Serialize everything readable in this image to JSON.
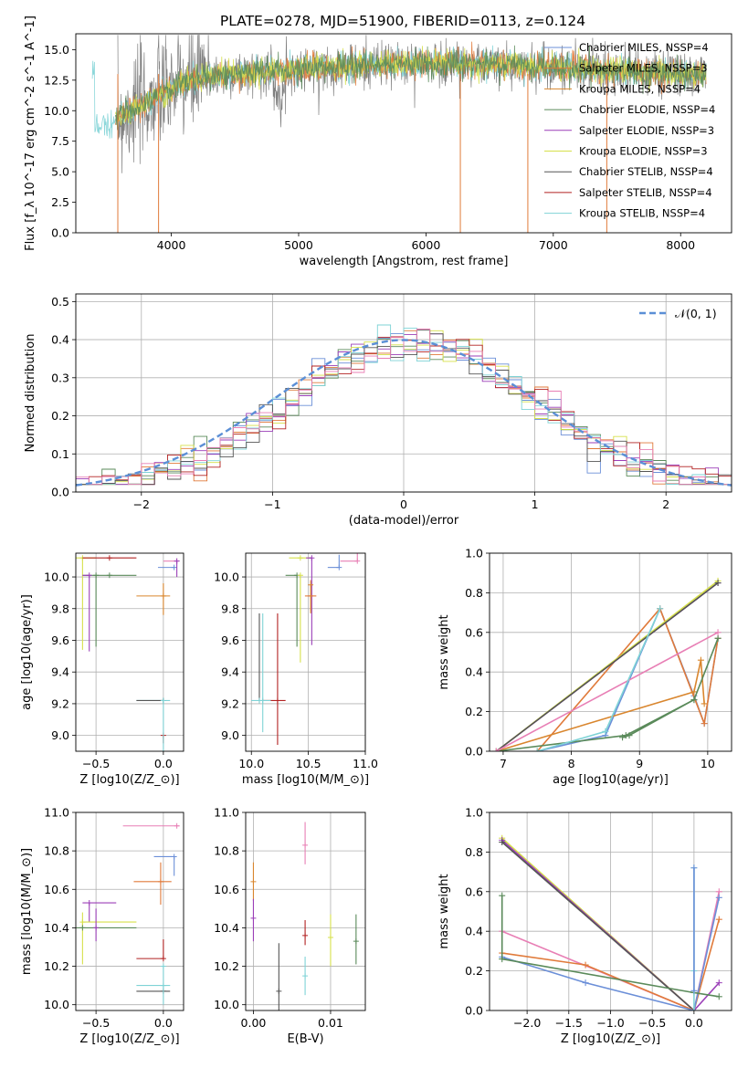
{
  "figure_title": "PLATE=0278, MJD=51900, FIBERID=0113, z=0.124",
  "palette": {
    "Chabrier MILES": "#6b8fd8",
    "Salpeter MILES": "#e07a3a",
    "Kroupa MILES": "#d9862e",
    "Chabrier ELODIE": "#5a8a5a",
    "Salpeter ELODIE": "#9b3fb8",
    "Kroupa ELODIE": "#d6e04a",
    "Chabrier STELIB": "#555555",
    "Salpeter STELIB": "#b22222",
    "Kroupa STELIB": "#7fd3d6",
    "grey_spectrum": "#808080",
    "pink": "#e87fb5",
    "gauss": "#5b8fd6"
  },
  "chart_data": [
    {
      "id": "spectrum",
      "type": "line",
      "title": "PLATE=0278, MJD=51900, FIBERID=0113, z=0.124",
      "xlabel": "wavelength [Angstrom, rest frame]",
      "ylabel": "Flux [f_λ 10^-17 erg cm^-2 s^-1 A^-1]",
      "xlim": [
        3250,
        8400
      ],
      "ylim": [
        0,
        16.3
      ],
      "xticks": [
        4000,
        5000,
        6000,
        7000,
        8000
      ],
      "yticks": [
        0.0,
        2.5,
        5.0,
        7.5,
        10.0,
        12.5,
        15.0
      ],
      "legend_position": "right",
      "legend": [
        "Chabrier MILES, N_SSP=4",
        "Salpeter MILES, N_SSP=3",
        "Kroupa MILES, N_SSP=4",
        "Chabrier ELODIE, N_SSP=4",
        "Salpeter ELODIE, N_SSP=3",
        "Kroupa ELODIE, N_SSP=3",
        "Chabrier STELIB, N_SSP=4",
        "Salpeter STELIB, N_SSP=4",
        "Kroupa STELIB, N_SSP=4"
      ],
      "continuum_points": [
        [
          3400,
          8.7
        ],
        [
          3600,
          9.5
        ],
        [
          3900,
          11.2
        ],
        [
          4100,
          12.4
        ],
        [
          4500,
          13.0
        ],
        [
          5000,
          13.4
        ],
        [
          5500,
          13.7
        ],
        [
          6000,
          13.9
        ],
        [
          6500,
          13.8
        ],
        [
          7000,
          13.6
        ],
        [
          7500,
          13.3
        ],
        [
          8000,
          13.0
        ],
        [
          8200,
          12.9
        ]
      ],
      "spike_drops": [
        [
          3580,
          0.0
        ],
        [
          3900,
          0.0
        ],
        [
          6270,
          0.0
        ],
        [
          6800,
          0.0
        ],
        [
          7420,
          0.0
        ]
      ]
    },
    {
      "id": "residuals",
      "type": "histogram",
      "xlabel": "(data-model)/error",
      "ylabel": "Normed distribution",
      "xlim": [
        -2.5,
        2.5
      ],
      "ylim": [
        0,
        0.52
      ],
      "xticks": [
        -2,
        -1,
        0,
        1,
        2
      ],
      "yticks": [
        0.0,
        0.1,
        0.2,
        0.3,
        0.4,
        0.5
      ],
      "legend": [
        "𝒩(0, 1)"
      ],
      "legend_position": "top-right",
      "bin_width": 0.1
    },
    {
      "id": "age_vs_Z",
      "type": "scatter",
      "xlabel": "Z [log10(Z/Z_⊙)]",
      "ylabel": "age  [log10(age/yr)]",
      "xlim": [
        -0.65,
        0.15
      ],
      "ylim": [
        8.9,
        10.15
      ],
      "xticks": [
        -0.5,
        0.0
      ],
      "yticks": [
        9.0,
        9.2,
        9.4,
        9.6,
        9.8,
        10.0
      ],
      "points": [
        {
          "s": "Kroupa ELODIE",
          "x": -0.6,
          "y": 10.12,
          "xe": [
            0.05,
            0.1
          ],
          "ye": [
            0.58,
            0.0
          ]
        },
        {
          "s": "Salpeter STELIB",
          "x": -0.4,
          "y": 10.12,
          "xe": [
            0.2,
            0.2
          ],
          "ye": [
            0.0,
            0.0
          ]
        },
        {
          "s": "Chabrier ELODIE",
          "x": -0.4,
          "y": 10.01,
          "xe": [
            0.2,
            0.2
          ],
          "ye": [
            0.0,
            0.0
          ]
        },
        {
          "s": "Salpeter ELODIE",
          "x": -0.55,
          "y": 10.01,
          "xe": [
            0.05,
            0.0
          ],
          "ye": [
            0.48,
            0.0
          ]
        },
        {
          "s": "Chabrier ELODIE",
          "x": -0.5,
          "y": 10.01,
          "xe": [
            0.0,
            0.0
          ],
          "ye": [
            0.45,
            0.0
          ]
        },
        {
          "s": "Kroupa MILES",
          "x": 0.0,
          "y": 9.88,
          "xe": [
            0.2,
            0.05
          ],
          "ye": [
            0.12,
            0.08
          ]
        },
        {
          "s": "pink",
          "x": 0.1,
          "y": 10.1,
          "xe": [
            0.1,
            0.0
          ],
          "ye": [
            0.0,
            0.0
          ]
        },
        {
          "s": "Chabrier MILES",
          "x": 0.08,
          "y": 10.06,
          "xe": [
            0.12,
            0.0
          ],
          "ye": [
            0.0,
            0.0
          ]
        },
        {
          "s": "Salpeter ELODIE",
          "x": 0.1,
          "y": 10.1,
          "xe": [
            0.0,
            0.0
          ],
          "ye": [
            0.1,
            0.0
          ]
        },
        {
          "s": "Kroupa STELIB",
          "x": 0.0,
          "y": 9.22,
          "xe": [
            0.2,
            0.05
          ],
          "ye": [
            0.0,
            0.0
          ]
        },
        {
          "s": "Chabrier STELIB",
          "x": 0.0,
          "y": 9.22,
          "xe": [
            0.2,
            0.0
          ],
          "ye": [
            0.0,
            0.0
          ]
        },
        {
          "s": "Salpeter STELIB",
          "x": 0.0,
          "y": 9.0,
          "xe": [
            0.0,
            0.0
          ],
          "ye": [
            0.05,
            0.0
          ]
        },
        {
          "s": "Kroupa STELIB",
          "x": 0.0,
          "y": 9.22,
          "xe": [
            0.0,
            0.0
          ],
          "ye": [
            0.55,
            0.0
          ]
        }
      ]
    },
    {
      "id": "age_vs_mass",
      "type": "scatter",
      "xlabel": "mass [log10(M/M_⊙)]",
      "ylabel": "",
      "xlim": [
        9.95,
        11.0
      ],
      "ylim": [
        8.9,
        10.15
      ],
      "xticks": [
        10.0,
        10.5,
        11.0
      ],
      "yticks": [
        9.0,
        9.2,
        9.4,
        9.6,
        9.8,
        10.0
      ],
      "points": [
        {
          "s": "Kroupa ELODIE",
          "x": 10.43,
          "y": 10.12,
          "xe": [
            0.1,
            0.1
          ],
          "ye": [
            0.0,
            0.0
          ]
        },
        {
          "s": "Salpeter ELODIE",
          "x": 10.53,
          "y": 10.12,
          "xe": [
            0.05,
            0.0
          ],
          "ye": [
            0.55,
            0.0
          ]
        },
        {
          "s": "Chabrier ELODIE",
          "x": 10.4,
          "y": 10.01,
          "xe": [
            0.1,
            0.0
          ],
          "ye": [
            0.45,
            0.0
          ]
        },
        {
          "s": "Kroupa ELODIE",
          "x": 10.43,
          "y": 10.01,
          "xe": [
            0.0,
            0.0
          ],
          "ye": [
            0.55,
            0.0
          ]
        },
        {
          "s": "Salpeter MILES",
          "x": 10.52,
          "y": 9.88,
          "xe": [
            0.05,
            0.05
          ],
          "ye": [
            0.1,
            0.1
          ]
        },
        {
          "s": "Kroupa MILES",
          "x": 10.52,
          "y": 9.95,
          "xe": [
            0.0,
            0.0
          ],
          "ye": [
            0.18,
            0.0
          ]
        },
        {
          "s": "pink",
          "x": 10.93,
          "y": 10.1,
          "xe": [
            0.15,
            0.0
          ],
          "ye": [
            0.0,
            0.3
          ]
        },
        {
          "s": "Chabrier MILES",
          "x": 10.77,
          "y": 10.06,
          "xe": [
            0.1,
            0.0
          ],
          "ye": [
            0.0,
            0.08
          ]
        },
        {
          "s": "Chabrier STELIB",
          "x": 10.07,
          "y": 9.22,
          "xe": [
            0.0,
            0.0
          ],
          "ye": [
            0.0,
            0.55
          ]
        },
        {
          "s": "Kroupa STELIB",
          "x": 10.1,
          "y": 9.22,
          "xe": [
            0.1,
            0.0
          ],
          "ye": [
            0.2,
            0.55
          ]
        },
        {
          "s": "Salpeter STELIB",
          "x": 10.23,
          "y": 9.22,
          "xe": [
            0.13,
            0.07
          ],
          "ye": [
            0.28,
            0.55
          ]
        },
        {
          "s": "Kroupa STELIB",
          "x": 10.07,
          "y": 9.22,
          "xe": [
            0.0,
            0.1
          ],
          "ye": [
            0.0,
            0.0
          ]
        }
      ]
    },
    {
      "id": "mw_vs_age",
      "type": "line",
      "xlabel": "age  [log10(age/yr)]",
      "ylabel": "mass weight",
      "xlim": [
        6.8,
        10.35
      ],
      "ylim": [
        0,
        1.0
      ],
      "xticks": [
        7,
        8,
        9,
        10
      ],
      "yticks": [
        0.0,
        0.2,
        0.4,
        0.6,
        0.8,
        1.0
      ],
      "series": [
        {
          "s": "Chabrier MILES",
          "x": [
            7.5,
            8.5,
            9.3,
            9.8,
            9.95,
            10.15
          ],
          "y": [
            0.0,
            0.08,
            0.72,
            0.28,
            0.14,
            0.57
          ]
        },
        {
          "s": "Salpeter MILES",
          "x": [
            7.5,
            9.3,
            9.95,
            10.15
          ],
          "y": [
            0.0,
            0.72,
            0.14,
            0.57
          ]
        },
        {
          "s": "Kroupa MILES",
          "x": [
            6.9,
            9.8,
            9.9,
            9.95
          ],
          "y": [
            0.0,
            0.3,
            0.46,
            0.24
          ]
        },
        {
          "s": "Chabrier ELODIE",
          "x": [
            6.9,
            8.8,
            9.8,
            10.15
          ],
          "y": [
            0.0,
            0.08,
            0.26,
            0.57
          ]
        },
        {
          "s": "Salpeter ELODIE",
          "x": [
            6.9,
            10.15
          ],
          "y": [
            0.0,
            0.85
          ]
        },
        {
          "s": "Kroupa ELODIE",
          "x": [
            6.9,
            10.15
          ],
          "y": [
            0.0,
            0.86
          ]
        },
        {
          "s": "Chabrier STELIB",
          "x": [
            6.9,
            10.15
          ],
          "y": [
            0.0,
            0.85
          ]
        },
        {
          "s": "pink",
          "x": [
            6.9,
            10.15
          ],
          "y": [
            0.0,
            0.6
          ]
        },
        {
          "s": "Kroupa STELIB",
          "x": [
            7.5,
            8.5,
            9.3
          ],
          "y": [
            0.0,
            0.1,
            0.72
          ]
        },
        {
          "s": "Chabrier ELODIE",
          "x": [
            8.75,
            8.85,
            9.8
          ],
          "y": [
            0.07,
            0.08,
            0.26
          ]
        }
      ]
    },
    {
      "id": "mass_vs_Z",
      "type": "scatter",
      "xlabel": "Z [log10(Z/Z_⊙)]",
      "ylabel": "mass [log10(M/M_⊙)]",
      "xlim": [
        -0.65,
        0.15
      ],
      "ylim": [
        9.97,
        11.0
      ],
      "xticks": [
        -0.5,
        0.0
      ],
      "yticks": [
        10.0,
        10.2,
        10.4,
        10.6,
        10.8,
        11.0
      ],
      "points": [
        {
          "s": "pink",
          "x": 0.1,
          "y": 10.93,
          "xe": [
            0.4,
            0.02
          ],
          "ye": [
            0.0,
            0.0
          ]
        },
        {
          "s": "Chabrier MILES",
          "x": 0.08,
          "y": 10.77,
          "xe": [
            0.15,
            0.0
          ],
          "ye": [
            0.1,
            0.0
          ]
        },
        {
          "s": "Salpeter MILES",
          "x": -0.02,
          "y": 10.64,
          "xe": [
            0.2,
            0.08
          ],
          "ye": [
            0.12,
            0.1
          ]
        },
        {
          "s": "Salpeter ELODIE",
          "x": -0.55,
          "y": 10.53,
          "xe": [
            0.05,
            0.2
          ],
          "ye": [
            0.1,
            0.0
          ]
        },
        {
          "s": "Kroupa ELODIE",
          "x": -0.6,
          "y": 10.43,
          "xe": [
            0.0,
            0.4
          ],
          "ye": [
            0.22,
            0.05
          ]
        },
        {
          "s": "Chabrier ELODIE",
          "x": -0.6,
          "y": 10.4,
          "xe": [
            0.05,
            0.4
          ],
          "ye": [
            0.0,
            0.0
          ]
        },
        {
          "s": "Salpeter ELODIE",
          "x": -0.5,
          "y": 10.4,
          "xe": [
            0.0,
            0.0
          ],
          "ye": [
            0.07,
            0.1
          ]
        },
        {
          "s": "Salpeter STELIB",
          "x": 0.0,
          "y": 10.24,
          "xe": [
            0.2,
            0.0
          ],
          "ye": [
            0.0,
            0.1
          ]
        },
        {
          "s": "Kroupa STELIB",
          "x": 0.0,
          "y": 10.1,
          "xe": [
            0.2,
            0.05
          ],
          "ye": [
            0.0,
            0.0
          ]
        },
        {
          "s": "Chabrier STELIB",
          "x": 0.0,
          "y": 10.07,
          "xe": [
            0.2,
            0.05
          ],
          "ye": [
            0.0,
            0.0
          ]
        },
        {
          "s": "Kroupa STELIB",
          "x": 0.0,
          "y": 10.2,
          "xe": [
            0.0,
            0.0
          ],
          "ye": [
            0.2,
            0.0
          ]
        }
      ]
    },
    {
      "id": "mass_vs_EBV",
      "type": "scatter",
      "xlabel": "E(B-V)",
      "ylabel": "",
      "xlim": [
        -0.001,
        0.0145
      ],
      "ylim": [
        9.97,
        11.0
      ],
      "xticks": [
        0.0,
        0.01
      ],
      "yticks": [
        10.0,
        10.2,
        10.4,
        10.6,
        10.8,
        11.0
      ],
      "points": [
        {
          "s": "Kroupa MILES",
          "x": 0.0,
          "y": 10.64,
          "ye": [
            0.1,
            0.1
          ]
        },
        {
          "s": "Salpeter ELODIE",
          "x": 0.0,
          "y": 10.45,
          "ye": [
            0.12,
            0.1
          ]
        },
        {
          "s": "Chabrier STELIB",
          "x": 0.0033,
          "y": 10.07,
          "ye": [
            0.1,
            0.25
          ]
        },
        {
          "s": "pink",
          "x": 0.0067,
          "y": 10.83,
          "ye": [
            0.1,
            0.12
          ]
        },
        {
          "s": "Salpeter STELIB",
          "x": 0.0067,
          "y": 10.36,
          "ye": [
            0.05,
            0.08
          ]
        },
        {
          "s": "Kroupa STELIB",
          "x": 0.0067,
          "y": 10.15,
          "ye": [
            0.1,
            0.1
          ]
        },
        {
          "s": "Kroupa ELODIE",
          "x": 0.01,
          "y": 10.35,
          "ye": [
            0.15,
            0.12
          ]
        },
        {
          "s": "Chabrier ELODIE",
          "x": 0.0133,
          "y": 10.33,
          "ye": [
            0.12,
            0.14
          ]
        }
      ]
    },
    {
      "id": "mw_vs_Z",
      "type": "line",
      "xlabel": "Z [log10(Z/Z_⊙)]",
      "ylabel": "mass weight",
      "xlim": [
        -2.45,
        0.45
      ],
      "ylim": [
        0,
        1.0
      ],
      "xticks": [
        -2.0,
        -1.5,
        -1.0,
        -0.5,
        0.0
      ],
      "yticks": [
        0.0,
        0.2,
        0.4,
        0.6,
        0.8,
        1.0
      ],
      "series": [
        {
          "s": "Kroupa ELODIE",
          "x": [
            -2.3,
            0.0
          ],
          "y": [
            0.87,
            0.0
          ]
        },
        {
          "s": "Salpeter ELODIE",
          "x": [
            -2.3,
            0.0,
            0.3
          ],
          "y": [
            0.86,
            0.0,
            0.14
          ]
        },
        {
          "s": "Chabrier STELIB",
          "x": [
            -2.3,
            0.0
          ],
          "y": [
            0.85,
            0.0
          ]
        },
        {
          "s": "pink",
          "x": [
            -2.3,
            0.0,
            0.3
          ],
          "y": [
            0.4,
            0.0,
            0.6
          ]
        },
        {
          "s": "Salpeter MILES",
          "x": [
            -2.3,
            -1.3,
            0.0,
            0.3
          ],
          "y": [
            0.29,
            0.23,
            0.0,
            0.46
          ]
        },
        {
          "s": "Chabrier MILES",
          "x": [
            -2.3,
            -1.3,
            0.0,
            0.3
          ],
          "y": [
            0.27,
            0.14,
            0.0,
            0.57
          ]
        },
        {
          "s": "Chabrier ELODIE",
          "x": [
            -2.3,
            -2.3,
            0.0,
            0.3
          ],
          "y": [
            0.58,
            0.26,
            0.09,
            0.07
          ]
        },
        {
          "s": "Kroupa STELIB",
          "x": [
            0.0,
            0.0,
            0.0
          ],
          "y": [
            0.72,
            0.0,
            0.2
          ]
        },
        {
          "s": "Chabrier MILES",
          "x": [
            0.0,
            0.0
          ],
          "y": [
            0.72,
            0.1
          ]
        }
      ]
    }
  ]
}
